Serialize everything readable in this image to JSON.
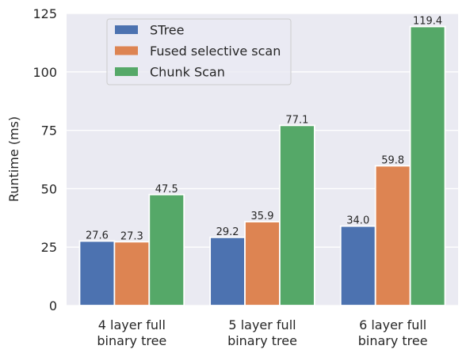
{
  "chart_data": {
    "type": "bar",
    "title": "",
    "xlabel": "",
    "ylabel": "Runtime (ms)",
    "ylim": [
      0,
      125
    ],
    "yticks": [
      "0",
      "25",
      "50",
      "75",
      "100",
      "125"
    ],
    "categories": [
      [
        "4 layer full",
        "binary tree"
      ],
      [
        "5 layer full",
        "binary tree"
      ],
      [
        "6 layer full",
        "binary tree"
      ]
    ],
    "series": [
      {
        "name": "STree",
        "color": "#4c72b0",
        "values": [
          27.6,
          29.2,
          34.0
        ],
        "labels": [
          "27.6",
          "29.2",
          "34.0"
        ]
      },
      {
        "name": "Fused selective scan",
        "color": "#dd8452",
        "values": [
          27.3,
          35.9,
          59.8
        ],
        "labels": [
          "27.3",
          "35.9",
          "59.8"
        ]
      },
      {
        "name": "Chunk Scan",
        "color": "#55a868",
        "values": [
          47.5,
          77.1,
          119.4
        ],
        "labels": [
          "47.5",
          "77.1",
          "119.4"
        ]
      }
    ],
    "grid": true,
    "background": "#eaeaf2",
    "legend": "top-left"
  }
}
